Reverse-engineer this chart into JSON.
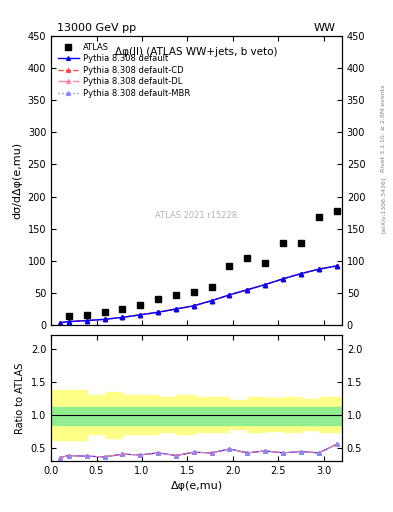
{
  "title_top": "13000 GeV pp",
  "title_right": "WW",
  "plot_title": "Δφ(ll) (ATLAS WW+jets, b veto)",
  "ylabel_main": "dσ/dΔφ(e,mu)",
  "ylabel_ratio": "Ratio to ATLAS",
  "xlabel": "Δφ(e,mu)",
  "right_label": "Rivet 3.1.10, ≥ 2.8M events",
  "right_label2": "[arXiv:1306.3436]",
  "watermark": "ATLAS 2021 r15228",
  "ylim_main": [
    0,
    450
  ],
  "ylim_ratio": [
    0.3,
    2.2
  ],
  "yticks_ratio": [
    0.5,
    1.0,
    1.5,
    2.0
  ],
  "atlas_x": [
    0.196,
    0.393,
    0.589,
    0.785,
    0.982,
    1.178,
    1.374,
    1.571,
    1.767,
    1.963,
    2.16,
    2.356,
    2.552,
    2.749,
    2.945,
    3.141
  ],
  "atlas_y": [
    14.0,
    16.0,
    20.0,
    25.0,
    32.0,
    40.0,
    47.0,
    52.0,
    60.0,
    92.0,
    104.0,
    97.0,
    128.0,
    128.0,
    168.0,
    178.0
  ],
  "pythia_x": [
    0.098,
    0.196,
    0.393,
    0.589,
    0.785,
    0.982,
    1.178,
    1.374,
    1.571,
    1.767,
    1.963,
    2.16,
    2.356,
    2.552,
    2.749,
    2.945,
    3.141
  ],
  "pythia_default_y": [
    3.5,
    5.5,
    7.0,
    9.0,
    12.0,
    16.0,
    20.0,
    25.0,
    30.0,
    38.0,
    47.0,
    55.0,
    63.0,
    72.0,
    80.0,
    87.0,
    92.0
  ],
  "pythia_cd_y": [
    3.5,
    5.5,
    7.0,
    9.0,
    12.0,
    16.0,
    20.0,
    25.0,
    30.0,
    38.0,
    47.0,
    55.0,
    63.0,
    72.0,
    80.0,
    87.0,
    92.0
  ],
  "pythia_dl_y": [
    3.5,
    5.5,
    7.0,
    9.0,
    12.0,
    16.0,
    20.0,
    25.0,
    30.0,
    38.0,
    47.0,
    55.0,
    63.0,
    72.0,
    80.0,
    87.0,
    92.0
  ],
  "pythia_mbr_y": [
    3.5,
    5.5,
    7.0,
    9.0,
    12.0,
    16.0,
    20.0,
    25.0,
    30.0,
    38.0,
    47.0,
    55.0,
    63.0,
    72.0,
    80.0,
    87.0,
    92.0
  ],
  "ratio_x": [
    0.098,
    0.196,
    0.393,
    0.589,
    0.785,
    0.982,
    1.178,
    1.374,
    1.571,
    1.767,
    1.963,
    2.16,
    2.356,
    2.552,
    2.749,
    2.945,
    3.141
  ],
  "ratio_default": [
    0.35,
    0.38,
    0.37,
    0.36,
    0.4,
    0.39,
    0.42,
    0.38,
    0.43,
    0.42,
    0.48,
    0.42,
    0.45,
    0.42,
    0.44,
    0.42,
    0.55
  ],
  "ratio_cd": [
    0.35,
    0.38,
    0.37,
    0.36,
    0.4,
    0.39,
    0.42,
    0.38,
    0.43,
    0.42,
    0.48,
    0.42,
    0.45,
    0.42,
    0.44,
    0.42,
    0.55
  ],
  "ratio_dl": [
    0.35,
    0.38,
    0.37,
    0.36,
    0.4,
    0.39,
    0.42,
    0.38,
    0.43,
    0.42,
    0.48,
    0.42,
    0.45,
    0.42,
    0.44,
    0.42,
    0.55
  ],
  "ratio_mbr": [
    0.35,
    0.38,
    0.37,
    0.36,
    0.4,
    0.39,
    0.42,
    0.38,
    0.43,
    0.42,
    0.48,
    0.42,
    0.45,
    0.42,
    0.44,
    0.42,
    0.55
  ],
  "green_band_lo": 0.85,
  "green_band_hi": 1.12,
  "yellow_band_lo_x": [
    0.0,
    0.196,
    0.393,
    0.589,
    0.785,
    0.982,
    1.178,
    1.374,
    1.571,
    1.767,
    1.963,
    2.16,
    2.356,
    2.552,
    2.749,
    2.945,
    3.2
  ],
  "yellow_band_lo": [
    0.62,
    0.62,
    0.7,
    0.65,
    0.7,
    0.7,
    0.73,
    0.7,
    0.73,
    0.73,
    0.78,
    0.73,
    0.75,
    0.73,
    0.76,
    0.73,
    0.8
  ],
  "yellow_band_hi": [
    1.38,
    1.38,
    1.3,
    1.35,
    1.3,
    1.3,
    1.27,
    1.3,
    1.27,
    1.27,
    1.22,
    1.27,
    1.25,
    1.27,
    1.24,
    1.27,
    1.2
  ],
  "color_default": "#0000ff",
  "color_cd": "#ff4444",
  "color_dl": "#ff88aa",
  "color_mbr": "#8888ff",
  "bg_color": "#ffffff",
  "green_color": "#90ee90",
  "yellow_color": "#ffff88"
}
